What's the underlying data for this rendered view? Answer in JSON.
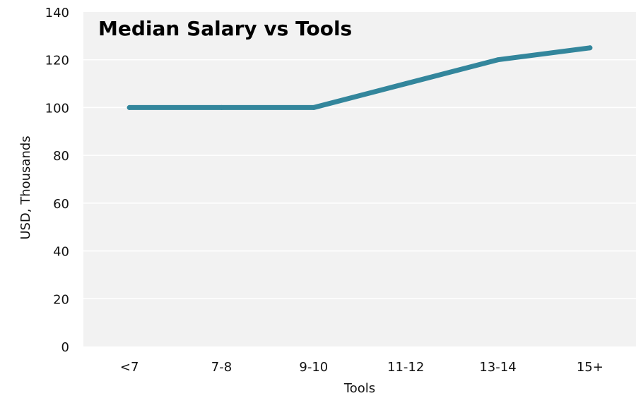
{
  "chart_data": {
    "type": "line",
    "title": "Median Salary vs Tools",
    "xlabel": "Tools",
    "ylabel": "USD, Thousands",
    "categories": [
      "<7",
      "7-8",
      "9-10",
      "11-12",
      "13-14",
      "15+"
    ],
    "series": [
      {
        "values": [
          100,
          100,
          100,
          110,
          120,
          125
        ]
      }
    ],
    "ylim": [
      0,
      140
    ],
    "yticks": [
      0,
      20,
      40,
      60,
      80,
      100,
      120,
      140
    ],
    "grid": true,
    "legend": "none",
    "colors": {
      "line": "#33869c",
      "plot_background": "#f2f2f2",
      "grid": "#ffffff"
    }
  }
}
